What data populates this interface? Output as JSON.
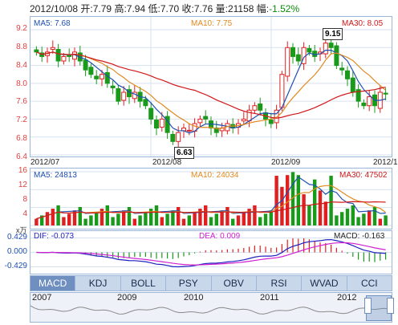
{
  "header": {
    "date": "2012/10/08",
    "open_label": "开:",
    "open": "7.79",
    "high_label": "高:",
    "high": "7.94",
    "low_label": "低:",
    "low": "7.70",
    "close_label": "收:",
    "close": "7.76",
    "vol_label": "量:",
    "vol": "21158",
    "chg_label": "幅:",
    "chg": "-1.52%"
  },
  "price_panel": {
    "ma5_label": "MA5: 7.68",
    "ma10_label": "MA10: 7.75",
    "ma30_label": "MA30: 8.05",
    "yticks": [
      "9.2",
      "8.8",
      "8.4",
      "8.0",
      "7.6",
      "7.2",
      "6.8",
      "6.4"
    ],
    "xdates": [
      "2012/07",
      "2012/08",
      "2012/09",
      "2012/1"
    ],
    "high_callout": "9.15",
    "low_callout": "6.63"
  },
  "volume_panel": {
    "ma5_label": "MA5: 24813",
    "ma10_label": "MA10: 24034",
    "ma30_label": "MA30: 47502",
    "yticks": [
      "16",
      "12",
      "8",
      "4"
    ],
    "unit": "x万"
  },
  "macd_panel": {
    "dif_label": "DIF: -0.073",
    "dea_label": "DEA: 0.009",
    "macd_label": "MACD: -0.163",
    "yticks": [
      "0.429",
      "0.000",
      "-0.429"
    ]
  },
  "tabs": [
    "MACD",
    "KDJ",
    "BOLL",
    "PSY",
    "OBV",
    "RSI",
    "WVAD",
    "CCI"
  ],
  "active_tab": "MACD",
  "scroller": {
    "years": [
      "2007",
      "2009",
      "2010",
      "2011",
      "2012"
    ]
  },
  "colors": {
    "up": "#e02020",
    "down": "#1a9a1a",
    "ma5": "#1f4fb0",
    "ma10": "#e08a20",
    "ma30": "#d01818",
    "dif": "#1f1fc0",
    "dea": "#d020d0"
  },
  "chart_data": {
    "type": "candlestick",
    "title": "",
    "xlabel": "",
    "ylabel": "",
    "ylim": [
      6.4,
      9.2
    ],
    "x": [
      "2012/07",
      "2012/08",
      "2012/09",
      "2012/10"
    ],
    "series": [
      {
        "name": "MA5",
        "last": 7.68
      },
      {
        "name": "MA10",
        "last": 7.75
      },
      {
        "name": "MA30",
        "last": 8.05
      }
    ],
    "close_approx": [
      8.7,
      8.6,
      8.7,
      8.8,
      8.5,
      8.6,
      8.6,
      8.7,
      8.5,
      8.3,
      8.2,
      8.1,
      8.2,
      8.0,
      7.9,
      7.6,
      7.8,
      7.7,
      7.8,
      7.6,
      7.5,
      7.2,
      7.0,
      7.2,
      6.9,
      6.7,
      6.9,
      7.0,
      6.95,
      7.1,
      7.2,
      7.2,
      7.0,
      6.9,
      7.0,
      7.1,
      7.0,
      7.1,
      7.2,
      7.4,
      7.5,
      7.4,
      7.2,
      7.1,
      7.4,
      8.2,
      8.8,
      8.6,
      8.5,
      8.8,
      8.7,
      8.6,
      8.7,
      8.9,
      8.8,
      8.4,
      8.3,
      8.1,
      7.8,
      7.6,
      7.5,
      7.7,
      7.5,
      7.8,
      7.76
    ],
    "volume_ylim": [
      0,
      16
    ],
    "macd_ylim": [
      -0.429,
      0.429
    ],
    "annotations": [
      "9.15",
      "6.63"
    ]
  }
}
